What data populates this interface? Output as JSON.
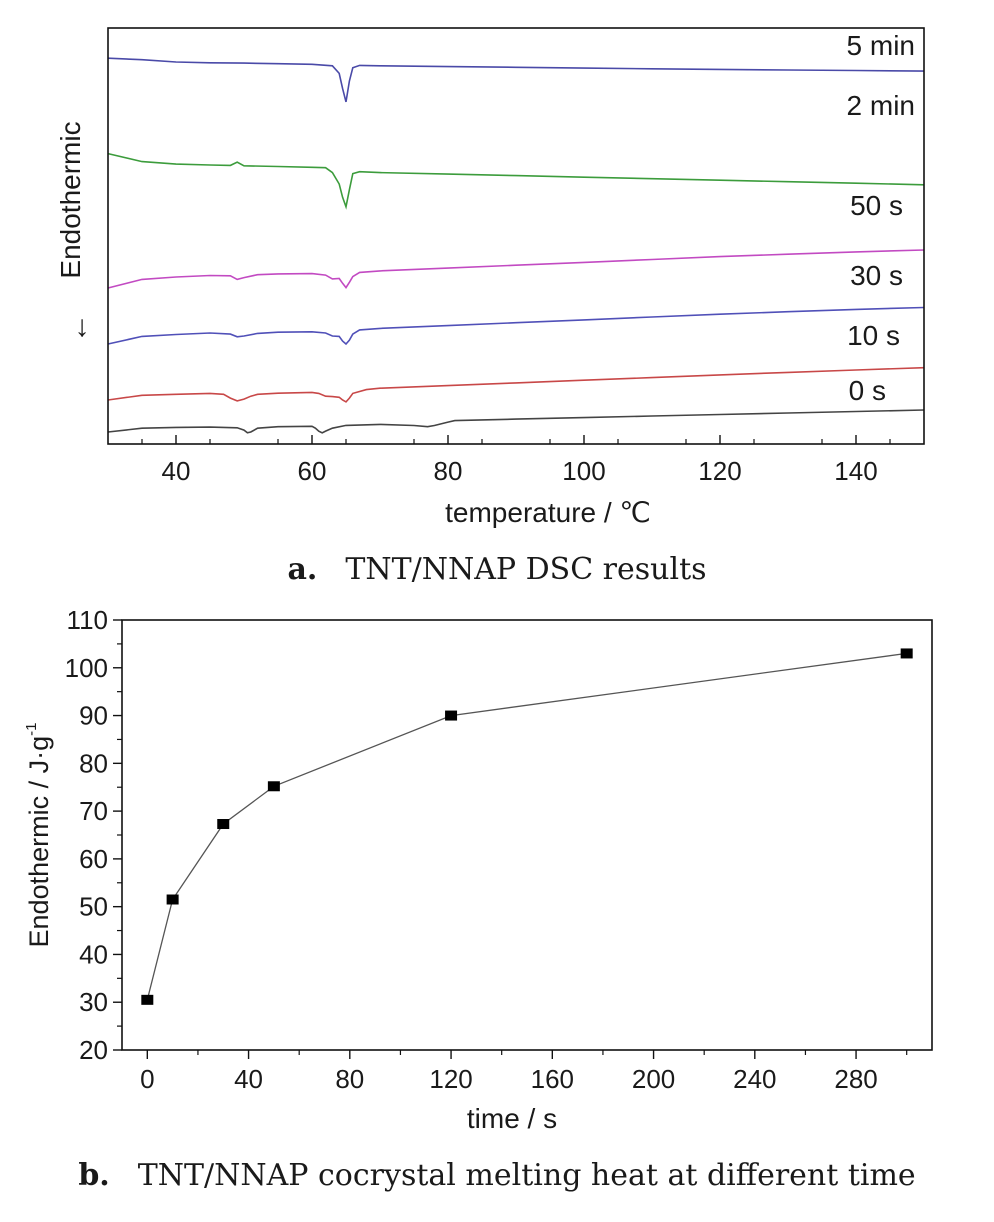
{
  "charts": {
    "a": {
      "caption_tag": "a.",
      "caption_text": "TNT/NNAP DSC results",
      "ylabel": "Endothermic"
    },
    "b": {
      "caption_tag": "b.",
      "caption_text": "TNT/NNAP cocrystal melting heat at different time"
    }
  },
  "chart_data": [
    {
      "type": "line",
      "title": "",
      "xlabel": "temperature / ℃",
      "ylabel": "Endothermic",
      "ylabel_arrow": "↓",
      "xlim": [
        30,
        150
      ],
      "xticks": [
        40,
        60,
        80,
        100,
        120,
        140
      ],
      "y_ticks_shown": false,
      "grid": false,
      "series": [
        {
          "label": "5 min",
          "color": "#4a4aa8",
          "x": [
            30,
            35,
            40,
            45,
            50,
            55,
            60,
            63,
            64,
            64.5,
            65,
            65.5,
            66,
            67,
            70,
            80,
            90,
            100,
            110,
            120,
            130,
            140,
            150
          ],
          "y": [
            0.02,
            0.012,
            0.0,
            -0.004,
            -0.006,
            -0.009,
            -0.012,
            -0.02,
            -0.06,
            -0.14,
            -0.21,
            -0.1,
            -0.03,
            -0.018,
            -0.02,
            -0.024,
            -0.028,
            -0.032,
            -0.036,
            -0.039,
            -0.042,
            -0.045,
            -0.048
          ]
        },
        {
          "label": "2 min",
          "color": "#3c9c3c",
          "x": [
            30,
            35,
            40,
            45,
            48,
            49,
            50,
            55,
            60,
            62,
            63,
            64,
            64.5,
            65,
            65.5,
            66,
            67,
            70,
            80,
            90,
            100,
            110,
            120,
            130,
            140,
            150
          ],
          "y": [
            0.06,
            0.018,
            0.005,
            0.0,
            -0.002,
            0.015,
            -0.004,
            -0.008,
            -0.012,
            -0.014,
            -0.04,
            -0.1,
            -0.17,
            -0.22,
            -0.13,
            -0.045,
            -0.035,
            -0.04,
            -0.048,
            -0.056,
            -0.064,
            -0.072,
            -0.08,
            -0.088,
            -0.096,
            -0.104
          ]
        },
        {
          "label": "50 s",
          "color": "#c24ac2",
          "x": [
            30,
            35,
            40,
            45,
            48,
            49,
            50,
            52,
            55,
            60,
            62,
            63,
            64,
            64.5,
            65,
            65.5,
            66,
            67,
            70,
            80,
            90,
            100,
            110,
            120,
            130,
            140,
            150
          ],
          "y": [
            0.0,
            0.045,
            0.058,
            0.066,
            0.064,
            0.045,
            0.055,
            0.07,
            0.074,
            0.076,
            0.068,
            0.048,
            0.05,
            0.025,
            0.002,
            0.03,
            0.06,
            0.082,
            0.09,
            0.105,
            0.12,
            0.135,
            0.15,
            0.165,
            0.178,
            0.19,
            0.2
          ]
        },
        {
          "label": "30 s",
          "color": "#5050b8",
          "x": [
            30,
            35,
            40,
            45,
            48,
            49,
            50,
            52,
            55,
            60,
            62,
            63,
            64,
            64.5,
            65,
            65.5,
            66,
            67,
            70,
            80,
            90,
            100,
            110,
            120,
            130,
            140,
            150
          ],
          "y": [
            0.0,
            0.04,
            0.05,
            0.058,
            0.052,
            0.038,
            0.042,
            0.056,
            0.062,
            0.064,
            0.058,
            0.042,
            0.04,
            0.015,
            0.0,
            0.02,
            0.052,
            0.074,
            0.082,
            0.097,
            0.112,
            0.127,
            0.142,
            0.157,
            0.17,
            0.182,
            0.192
          ]
        },
        {
          "label": "10 s",
          "color": "#c84848",
          "x": [
            30,
            35,
            40,
            45,
            47,
            48,
            49,
            50,
            51,
            52,
            55,
            60,
            61,
            62,
            63,
            64,
            64.5,
            65,
            65.5,
            66,
            68,
            70,
            80,
            90,
            100,
            110,
            120,
            130,
            140,
            150
          ],
          "y": [
            0.0,
            0.025,
            0.03,
            0.035,
            0.03,
            0.01,
            -0.005,
            0.005,
            0.02,
            0.03,
            0.036,
            0.04,
            0.035,
            0.02,
            0.018,
            0.014,
            0.0,
            -0.01,
            0.01,
            0.035,
            0.055,
            0.062,
            0.076,
            0.09,
            0.104,
            0.118,
            0.132,
            0.145,
            0.158,
            0.17
          ]
        },
        {
          "label": "0 s",
          "color": "#444444",
          "x": [
            30,
            35,
            40,
            45,
            49,
            50,
            50.5,
            51,
            52,
            55,
            60,
            60.5,
            61,
            61.5,
            62,
            63,
            65,
            70,
            75,
            77,
            78,
            80,
            81,
            90,
            100,
            110,
            120,
            130,
            140,
            150
          ],
          "y": [
            0.0,
            0.02,
            0.024,
            0.026,
            0.022,
            0.01,
            -0.004,
            0.0,
            0.02,
            0.028,
            0.03,
            0.02,
            0.004,
            -0.004,
            0.005,
            0.02,
            0.035,
            0.04,
            0.034,
            0.028,
            0.034,
            0.052,
            0.06,
            0.068,
            0.076,
            0.084,
            0.092,
            0.1,
            0.108,
            0.116
          ]
        }
      ]
    },
    {
      "type": "line",
      "title": "",
      "xlabel": "time / s",
      "ylabel": "Endothermic / J·g",
      "ylabel_superscript": "-1",
      "xlim": [
        -10,
        310
      ],
      "ylim": [
        20,
        110
      ],
      "xticks": [
        0,
        40,
        80,
        120,
        160,
        200,
        240,
        280
      ],
      "yticks": [
        20,
        30,
        40,
        50,
        60,
        70,
        80,
        90,
        100,
        110
      ],
      "grid": false,
      "series": [
        {
          "label": "",
          "marker": "square",
          "color": "#000000",
          "x": [
            0,
            10,
            30,
            50,
            120,
            300
          ],
          "y": [
            30.5,
            51.5,
            67.3,
            75.2,
            90,
            103
          ]
        }
      ]
    }
  ]
}
